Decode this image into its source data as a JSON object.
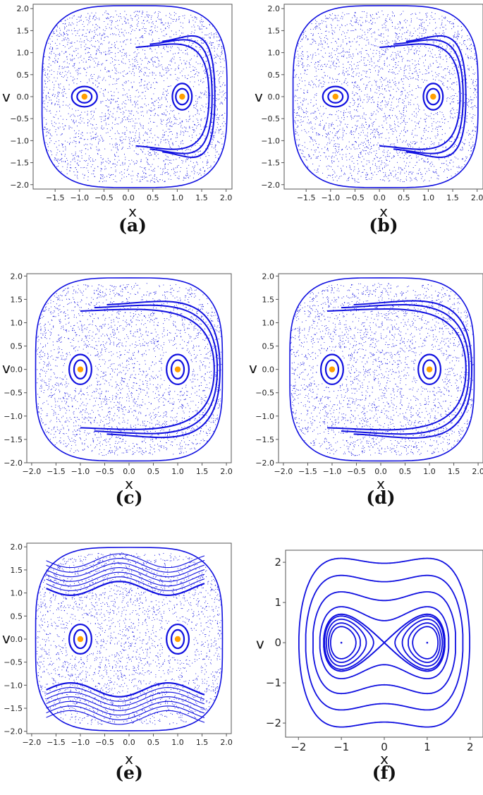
{
  "chart_data": [
    {
      "id": "a",
      "caption": "(a)",
      "type": "scatter",
      "xlabel": "x",
      "ylabel": "v",
      "xlim": [
        -1.95,
        2.12
      ],
      "ylim": [
        -2.1,
        2.1
      ],
      "xticks": [
        "−1.5",
        "−1.0",
        "−0.5",
        "0.0",
        "0.5",
        "1.0",
        "1.5",
        "2.0"
      ],
      "xtick_values": [
        -1.5,
        -1.0,
        -0.5,
        0.0,
        0.5,
        1.0,
        1.5,
        2.0
      ],
      "yticks": [
        "2.0",
        "1.5",
        "1.0",
        "0.5",
        "0.0",
        "−0.5",
        "−1.0",
        "−1.5",
        "−2.0"
      ],
      "ytick_values": [
        2.0,
        1.5,
        1.0,
        0.5,
        0.0,
        -0.5,
        -1.0,
        -1.5,
        -2.0
      ],
      "fixed_points": [
        [
          -0.9,
          0
        ],
        [
          1.1,
          0
        ]
      ],
      "islands": [
        {
          "cx": -0.9,
          "rx": [
            0.15,
            0.26
          ],
          "ry": [
            0.14,
            0.23
          ]
        },
        {
          "cx": 1.1,
          "rx": [
            0.13,
            0.2
          ],
          "ry": [
            0.18,
            0.3
          ]
        }
      ],
      "outer_arcs": [
        {
          "x0": 0.15,
          "y0": 1.12,
          "x1": 1.65,
          "y1": 1.55
        }
      ],
      "chaos_extent": {
        "x": [
          -1.75,
          2.0
        ],
        "y": [
          -1.95,
          1.95
        ]
      },
      "grid": false
    },
    {
      "id": "b",
      "caption": "(b)",
      "type": "scatter",
      "xlabel": "x",
      "ylabel": "v",
      "xlim": [
        -1.95,
        2.12
      ],
      "ylim": [
        -2.1,
        2.1
      ],
      "xticks": [
        "−1.5",
        "−1.0",
        "−0.5",
        "0.0",
        "0.5",
        "1.0",
        "1.5",
        "2.0"
      ],
      "xtick_values": [
        -1.5,
        -1.0,
        -0.5,
        0.0,
        0.5,
        1.0,
        1.5,
        2.0
      ],
      "yticks": [
        "2.0",
        "1.5",
        "1.0",
        "0.5",
        "0.0",
        "−0.5",
        "−1.0",
        "−1.5",
        "−2.0"
      ],
      "ytick_values": [
        2.0,
        1.5,
        1.0,
        0.5,
        0.0,
        -0.5,
        -1.0,
        -1.5,
        -2.0
      ],
      "fixed_points": [
        [
          -0.9,
          0
        ],
        [
          1.1,
          0
        ]
      ],
      "islands": [
        {
          "cx": -0.9,
          "rx": [
            0.15,
            0.26
          ],
          "ry": [
            0.14,
            0.23
          ]
        },
        {
          "cx": 1.1,
          "rx": [
            0.13,
            0.2
          ],
          "ry": [
            0.18,
            0.3
          ]
        }
      ],
      "outer_arcs": [
        {
          "x0": 0.0,
          "y0": 1.12,
          "x1": 1.65,
          "y1": 1.55
        }
      ],
      "chaos_extent": {
        "x": [
          -1.75,
          2.0
        ],
        "y": [
          -1.95,
          1.95
        ]
      },
      "grid": false
    },
    {
      "id": "c",
      "caption": "(c)",
      "type": "scatter",
      "xlabel": "x",
      "ylabel": "v",
      "xlim": [
        -2.1,
        2.1
      ],
      "ylim": [
        -2.0,
        2.05
      ],
      "xticks": [
        "−2.0",
        "−1.5",
        "−1.0",
        "−0.5",
        "0.0",
        "0.5",
        "1.0",
        "1.5",
        "2.0"
      ],
      "xtick_values": [
        -2.0,
        -1.5,
        -1.0,
        -0.5,
        0.0,
        0.5,
        1.0,
        1.5,
        2.0
      ],
      "yticks": [
        "2.0",
        "1.5",
        "1.0",
        "0.5",
        "0.0",
        "−0.5",
        "−1.0",
        "−1.5",
        "−2.0"
      ],
      "ytick_values": [
        2.0,
        1.5,
        1.0,
        0.5,
        0.0,
        -0.5,
        -1.0,
        -1.5,
        -2.0
      ],
      "fixed_points": [
        [
          -1.0,
          0
        ],
        [
          1.0,
          0
        ]
      ],
      "islands": [
        {
          "cx": -1.0,
          "rx": [
            0.13,
            0.23
          ],
          "ry": [
            0.2,
            0.32
          ]
        },
        {
          "cx": 1.0,
          "rx": [
            0.13,
            0.23
          ],
          "ry": [
            0.2,
            0.32
          ]
        }
      ],
      "outer_arcs": [
        {
          "x0": -1.0,
          "y0": 1.25,
          "x1": 1.75,
          "y1": 1.5
        }
      ],
      "chaos_extent": {
        "x": [
          -1.9,
          1.9
        ],
        "y": [
          -1.85,
          1.85
        ]
      },
      "grid": false
    },
    {
      "id": "d",
      "caption": "(d)",
      "type": "scatter",
      "xlabel": "x",
      "ylabel": "v",
      "xlim": [
        -2.1,
        2.1
      ],
      "ylim": [
        -2.0,
        2.05
      ],
      "xticks": [
        "−2.0",
        "−1.5",
        "−1.0",
        "−0.5",
        "0.0",
        "0.5",
        "1.0",
        "1.5",
        "2.0"
      ],
      "xtick_values": [
        -2.0,
        -1.5,
        -1.0,
        -0.5,
        0.0,
        0.5,
        1.0,
        1.5,
        2.0
      ],
      "yticks": [
        "2.0",
        "1.5",
        "1.0",
        "0.5",
        "0.0",
        "−0.5",
        "−1.0",
        "−1.5",
        "−2.0"
      ],
      "ytick_values": [
        2.0,
        1.5,
        1.0,
        0.5,
        0.0,
        -0.5,
        -1.0,
        -1.5,
        -2.0
      ],
      "fixed_points": [
        [
          -1.0,
          0
        ],
        [
          1.0,
          0
        ]
      ],
      "islands": [
        {
          "cx": -1.0,
          "rx": [
            0.13,
            0.23
          ],
          "ry": [
            0.2,
            0.32
          ]
        },
        {
          "cx": 1.0,
          "rx": [
            0.13,
            0.23
          ],
          "ry": [
            0.2,
            0.32
          ]
        }
      ],
      "outer_arcs": [
        {
          "x0": -1.1,
          "y0": 1.25,
          "x1": 1.75,
          "y1": 1.55
        }
      ],
      "chaos_extent": {
        "x": [
          -1.85,
          1.9
        ],
        "y": [
          -1.85,
          1.85
        ]
      },
      "grid": false
    },
    {
      "id": "e",
      "caption": "(e)",
      "type": "scatter",
      "xlabel": "x",
      "ylabel": "v",
      "xlim": [
        -2.1,
        2.1
      ],
      "ylim": [
        -2.05,
        2.08
      ],
      "xticks": [
        "−2.0",
        "−1.5",
        "−1.0",
        "−0.5",
        "0.0",
        "0.5",
        "1.0",
        "1.5",
        "2.0"
      ],
      "xtick_values": [
        -2.0,
        -1.5,
        -1.0,
        -0.5,
        0.0,
        0.5,
        1.0,
        1.5,
        2.0
      ],
      "yticks": [
        "2.0",
        "1.5",
        "1.0",
        "0.5",
        "0.0",
        "−0.5",
        "−1.0",
        "−1.5",
        "−2.0"
      ],
      "ytick_values": [
        2.0,
        1.5,
        1.0,
        0.5,
        0.0,
        -0.5,
        -1.0,
        -1.5,
        -2.0
      ],
      "fixed_points": [
        [
          -1.0,
          0
        ],
        [
          1.0,
          0
        ]
      ],
      "islands": [
        {
          "cx": -1.0,
          "rx": [
            0.13,
            0.23
          ],
          "ry": [
            0.2,
            0.32
          ]
        },
        {
          "cx": 1.0,
          "rx": [
            0.13,
            0.23
          ],
          "ry": [
            0.2,
            0.32
          ]
        }
      ],
      "band_levels": [
        1.1,
        1.2,
        1.3,
        1.4,
        1.5,
        1.6,
        1.7
      ],
      "chaos_extent": {
        "x": [
          -1.9,
          1.9
        ],
        "y": [
          -1.85,
          1.9
        ]
      },
      "grid": false
    },
    {
      "id": "f",
      "caption": "(f)",
      "type": "line",
      "xlabel": "x",
      "ylabel": "v",
      "xlim": [
        -2.3,
        2.3
      ],
      "ylim": [
        -2.35,
        2.3
      ],
      "xticks": [
        "−2",
        "−1",
        "0",
        "1",
        "2"
      ],
      "xtick_values": [
        -2,
        -1,
        0,
        1,
        2
      ],
      "yticks": [
        "2",
        "1",
        "0",
        "−1",
        "−2"
      ],
      "ytick_values": [
        2,
        1,
        0,
        -1,
        -2
      ],
      "energy_levels": [
        0.08,
        0.12,
        0.17,
        0.22,
        0.25,
        0.4,
        0.8,
        1.4,
        2.2
      ],
      "series": [],
      "grid": false
    }
  ],
  "colors": {
    "orbit": "#1010e0",
    "fixed_point": "#ff9f00",
    "frame": "#555555"
  }
}
